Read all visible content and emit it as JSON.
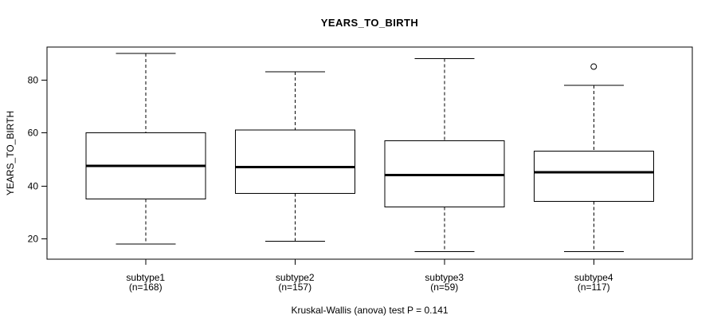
{
  "chart_data": {
    "type": "boxplot",
    "title": "YEARS_TO_BIRTH",
    "ylabel": "YEARS_TO_BIRTH",
    "xlabel": "",
    "annotation": "Kruskal-Wallis (anova) test P = 0.141",
    "test_name": "Kruskal-Wallis (anova)",
    "p_value": 0.141,
    "y_ticks": [
      20,
      40,
      60,
      80
    ],
    "y_range": [
      12.2,
      92.4
    ],
    "x_range": [
      0.34,
      4.66
    ],
    "grid": false,
    "box_halfwidth_units": 0.4,
    "cap_halfwidth_units": 0.2,
    "line_color": "#000000",
    "median_color": "#000000",
    "background": "#ffffff",
    "groups": [
      {
        "label": "subtype1",
        "n_label": "(n=168)",
        "n": 168,
        "whisker_low": 18,
        "q1": 35,
        "median": 47.5,
        "q3": 60,
        "whisker_high": 90,
        "outliers": []
      },
      {
        "label": "subtype2",
        "n_label": "(n=157)",
        "n": 157,
        "whisker_low": 19,
        "q1": 37,
        "median": 47,
        "q3": 61,
        "whisker_high": 83,
        "outliers": []
      },
      {
        "label": "subtype3",
        "n_label": "(n=59)",
        "n": 59,
        "whisker_low": 15,
        "q1": 32,
        "median": 44,
        "q3": 57,
        "whisker_high": 88,
        "outliers": []
      },
      {
        "label": "subtype4",
        "n_label": "(n=117)",
        "n": 117,
        "whisker_low": 15,
        "q1": 34,
        "median": 45,
        "q3": 53,
        "whisker_high": 78,
        "outliers": [
          85
        ]
      }
    ]
  }
}
